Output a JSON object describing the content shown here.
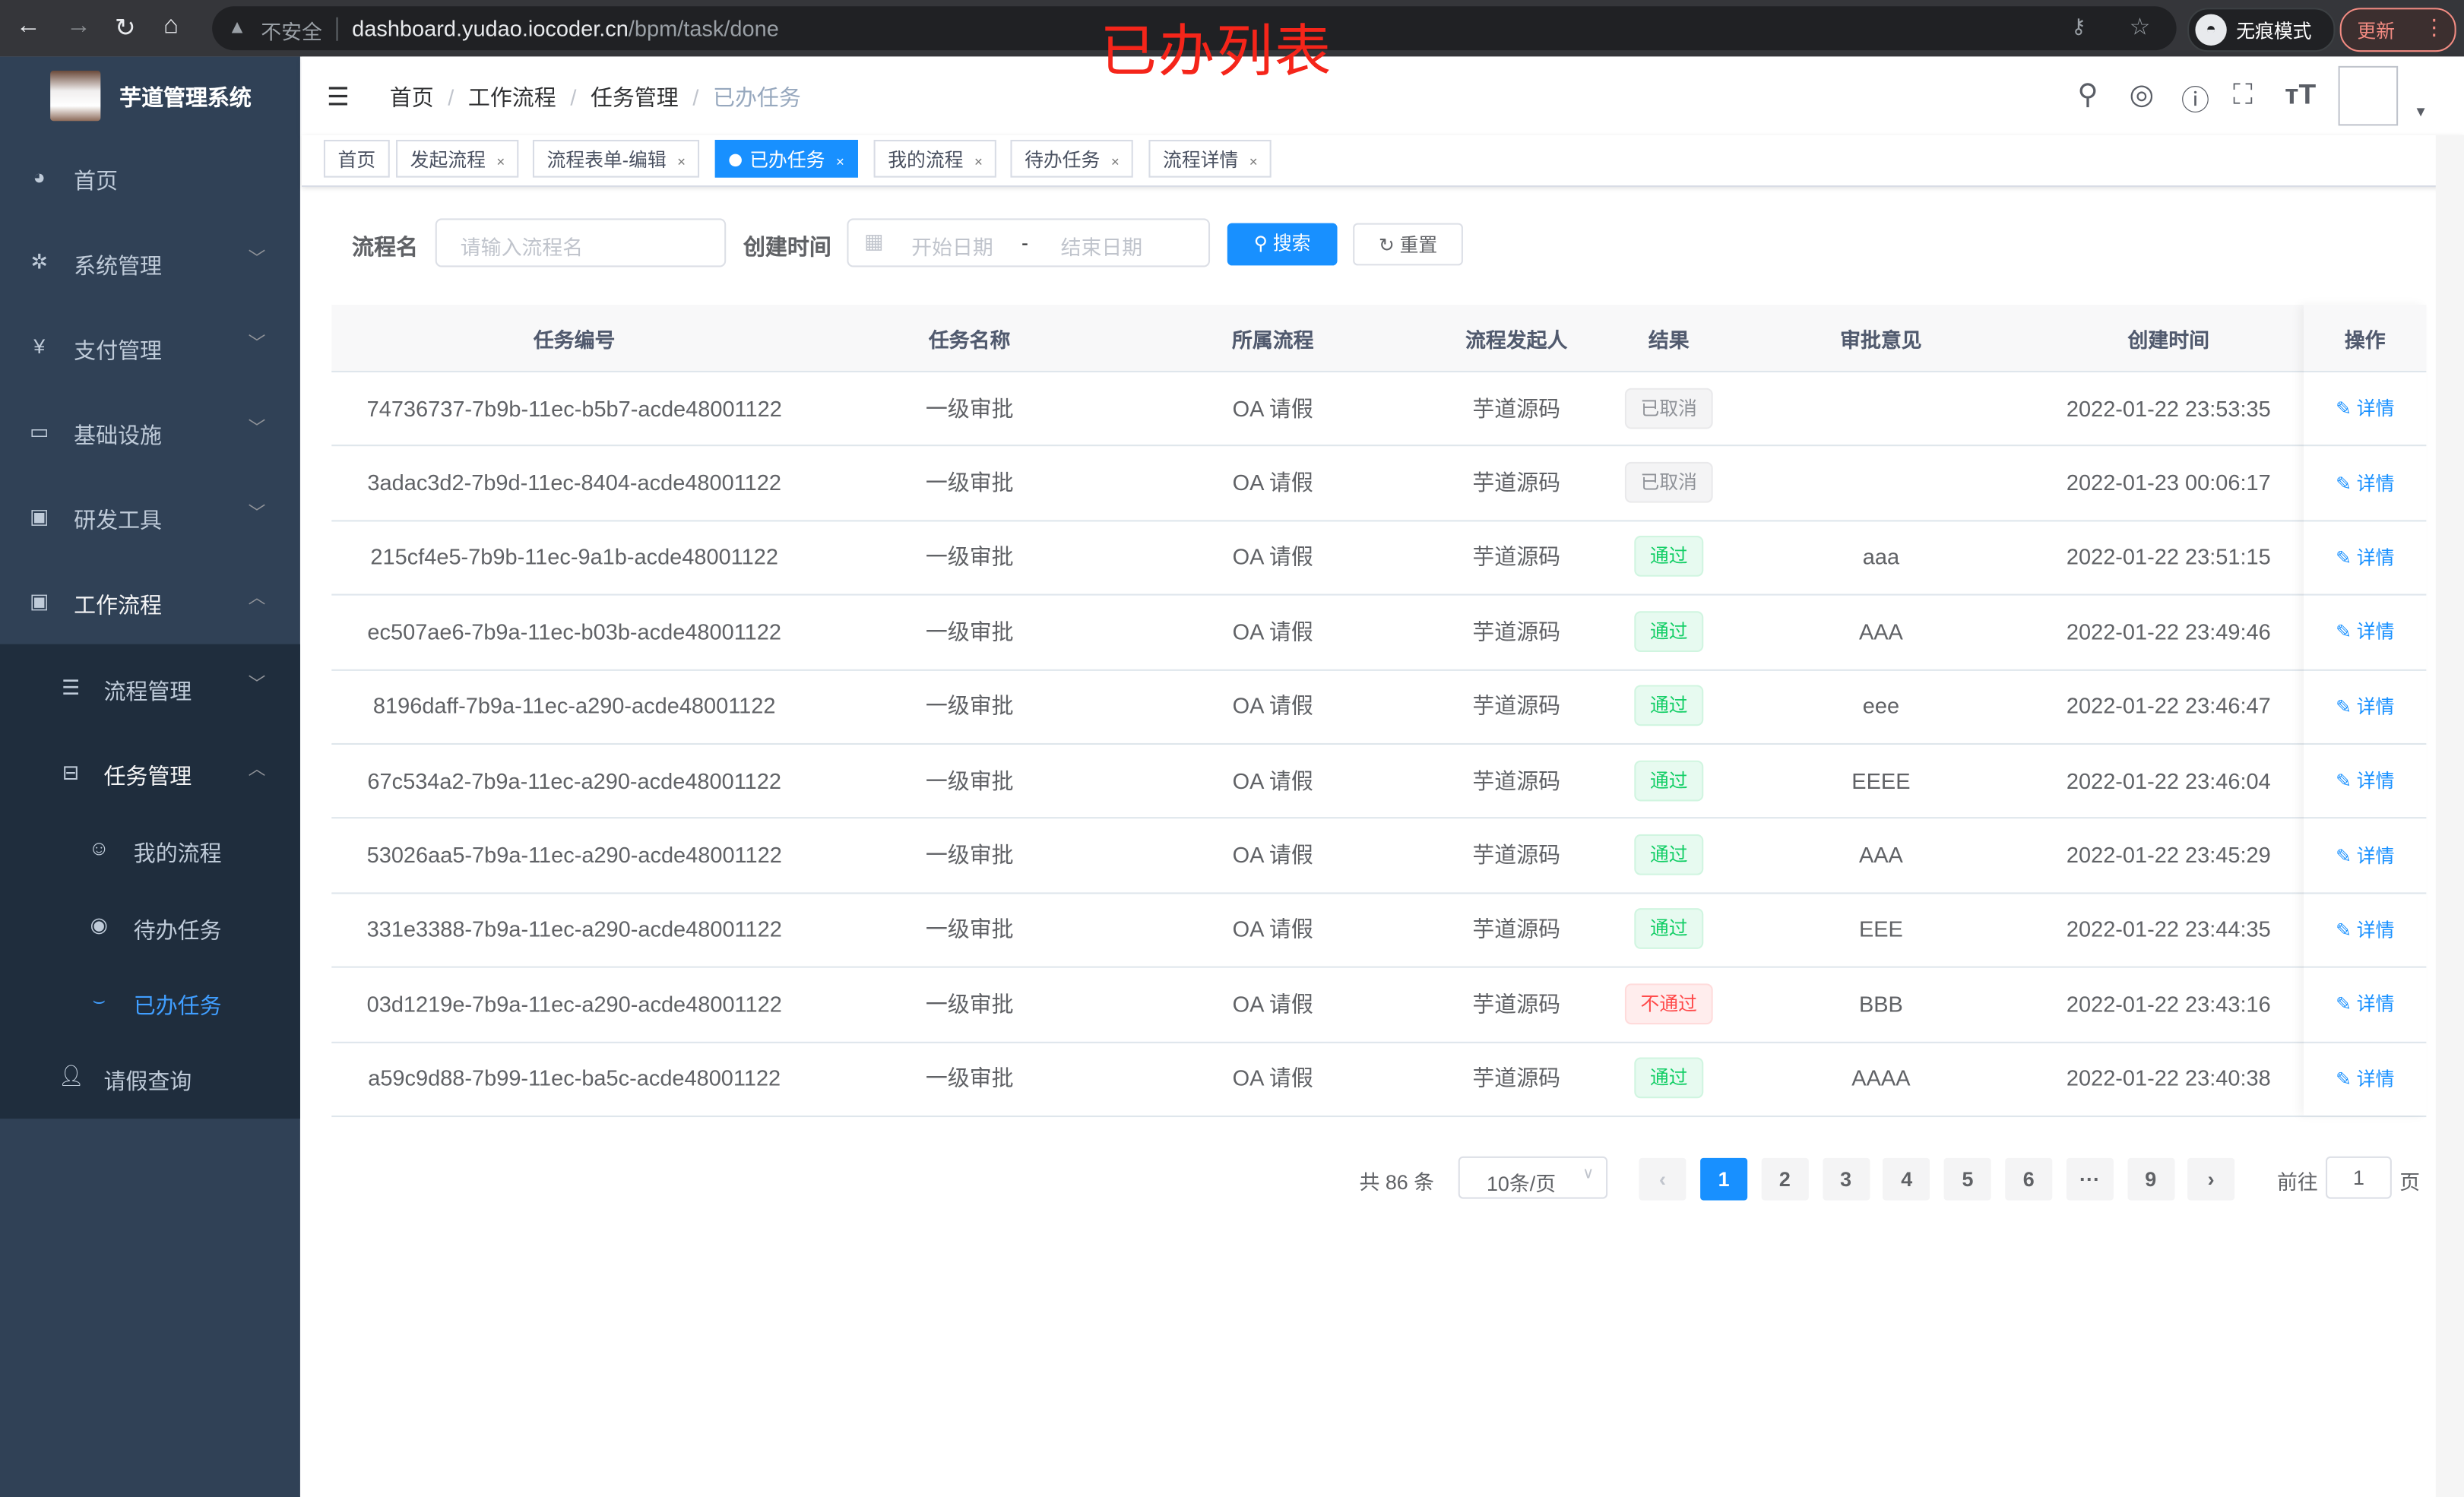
{
  "browser": {
    "security_label": "不安全",
    "url_host": "dashboard.yudao.iocoder.cn",
    "url_path": "/bpm/task/done",
    "incognito_label": "无痕模式",
    "update_label": "更新"
  },
  "annotation_title": "已办列表",
  "sidebar": {
    "system_name": "芋道管理系统",
    "items": [
      {
        "label": "首页",
        "icon": "dashboard-icon"
      },
      {
        "label": "系统管理",
        "icon": "gear-icon"
      },
      {
        "label": "支付管理",
        "icon": "yen-icon"
      },
      {
        "label": "基础设施",
        "icon": "monitor-icon"
      },
      {
        "label": "研发工具",
        "icon": "toolbox-icon"
      },
      {
        "label": "工作流程",
        "icon": "toolbox-icon"
      }
    ],
    "workflow_children": [
      {
        "label": "流程管理",
        "icon": "list-icon"
      },
      {
        "label": "任务管理",
        "icon": "tree-icon"
      }
    ],
    "task_children": [
      {
        "label": "我的流程",
        "icon": "people-icon"
      },
      {
        "label": "待办任务",
        "icon": "eye-icon"
      },
      {
        "label": "已办任务",
        "icon": "eye-closed-icon",
        "active": true
      }
    ],
    "leave_query": {
      "label": "请假查询",
      "icon": "user-icon"
    }
  },
  "breadcrumb": [
    "首页",
    "工作流程",
    "任务管理",
    "已办任务"
  ],
  "tags": [
    {
      "label": "首页",
      "closable": false
    },
    {
      "label": "发起流程",
      "closable": true
    },
    {
      "label": "流程表单-编辑",
      "closable": true
    },
    {
      "label": "已办任务",
      "closable": true,
      "active": true
    },
    {
      "label": "我的流程",
      "closable": true
    },
    {
      "label": "待办任务",
      "closable": true
    },
    {
      "label": "流程详情",
      "closable": true
    }
  ],
  "search": {
    "name_label": "流程名",
    "name_placeholder": "请输入流程名",
    "time_label": "创建时间",
    "start_placeholder": "开始日期",
    "range_sep": "-",
    "end_placeholder": "结束日期",
    "search_label": "搜索",
    "reset_label": "重置"
  },
  "table": {
    "columns": [
      "任务编号",
      "任务名称",
      "所属流程",
      "流程发起人",
      "结果",
      "审批意见",
      "创建时间",
      "操作"
    ],
    "rows": [
      {
        "id": "74736737-7b9b-11ec-b5b7-acde48001122",
        "name": "一级审批",
        "process": "OA 请假",
        "starter": "芋道源码",
        "result": "已取消",
        "result_type": "cancel",
        "comment": "",
        "time": "2022-01-22 23:53:35",
        "action": "详情"
      },
      {
        "id": "3adac3d2-7b9d-11ec-8404-acde48001122",
        "name": "一级审批",
        "process": "OA 请假",
        "starter": "芋道源码",
        "result": "已取消",
        "result_type": "cancel",
        "comment": "",
        "time": "2022-01-23 00:06:17",
        "action": "详情"
      },
      {
        "id": "215cf4e5-7b9b-11ec-9a1b-acde48001122",
        "name": "一级审批",
        "process": "OA 请假",
        "starter": "芋道源码",
        "result": "通过",
        "result_type": "pass",
        "comment": "aaa",
        "time": "2022-01-22 23:51:15",
        "action": "详情"
      },
      {
        "id": "ec507ae6-7b9a-11ec-b03b-acde48001122",
        "name": "一级审批",
        "process": "OA 请假",
        "starter": "芋道源码",
        "result": "通过",
        "result_type": "pass",
        "comment": "AAA",
        "time": "2022-01-22 23:49:46",
        "action": "详情"
      },
      {
        "id": "8196daff-7b9a-11ec-a290-acde48001122",
        "name": "一级审批",
        "process": "OA 请假",
        "starter": "芋道源码",
        "result": "通过",
        "result_type": "pass",
        "comment": "eee",
        "time": "2022-01-22 23:46:47",
        "action": "详情"
      },
      {
        "id": "67c534a2-7b9a-11ec-a290-acde48001122",
        "name": "一级审批",
        "process": "OA 请假",
        "starter": "芋道源码",
        "result": "通过",
        "result_type": "pass",
        "comment": "EEEE",
        "time": "2022-01-22 23:46:04",
        "action": "详情"
      },
      {
        "id": "53026aa5-7b9a-11ec-a290-acde48001122",
        "name": "一级审批",
        "process": "OA 请假",
        "starter": "芋道源码",
        "result": "通过",
        "result_type": "pass",
        "comment": "AAA",
        "time": "2022-01-22 23:45:29",
        "action": "详情"
      },
      {
        "id": "331e3388-7b9a-11ec-a290-acde48001122",
        "name": "一级审批",
        "process": "OA 请假",
        "starter": "芋道源码",
        "result": "通过",
        "result_type": "pass",
        "comment": "EEE",
        "time": "2022-01-22 23:44:35",
        "action": "详情"
      },
      {
        "id": "03d1219e-7b9a-11ec-a290-acde48001122",
        "name": "一级审批",
        "process": "OA 请假",
        "starter": "芋道源码",
        "result": "不通过",
        "result_type": "fail",
        "comment": "BBB",
        "time": "2022-01-22 23:43:16",
        "action": "详情"
      },
      {
        "id": "a59c9d88-7b99-11ec-ba5c-acde48001122",
        "name": "一级审批",
        "process": "OA 请假",
        "starter": "芋道源码",
        "result": "通过",
        "result_type": "pass",
        "comment": "AAAA",
        "time": "2022-01-22 23:40:38",
        "action": "详情"
      }
    ]
  },
  "pagination": {
    "total_label": "共 86 条",
    "page_size": "10条/页",
    "pages": [
      "1",
      "2",
      "3",
      "4",
      "5",
      "6",
      "···",
      "9"
    ],
    "current_page": "1",
    "goto_prefix": "前往",
    "goto_value": "1",
    "goto_suffix": "页"
  },
  "colors": {
    "primary": "#1890ff",
    "sidebar_bg": "#304156",
    "submenu_bg": "#1f2d3d",
    "annotation": "#f5251a"
  }
}
